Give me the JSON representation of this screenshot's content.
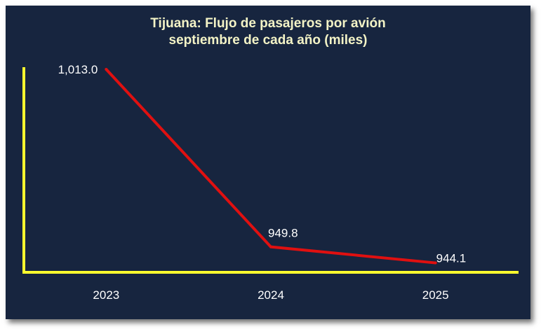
{
  "chart_data": {
    "type": "line",
    "title_line1": "Tijuana: Flujo de pasajeros por avión",
    "title_line2": "septiembre de cada año (miles)",
    "categories": [
      "2023",
      "2024",
      "2025"
    ],
    "values": [
      1013.0,
      949.8,
      944.1
    ],
    "data_labels": [
      "1,013.0",
      "949.8",
      "944.1"
    ],
    "ylim": [
      941.0,
      1013.0
    ],
    "xlabel": "",
    "ylabel": "",
    "grid": false,
    "legend": "none",
    "colors": {
      "background": "#17253f",
      "line": "#e01010",
      "axis": "#ffff2e",
      "title": "#f3f3c6",
      "text": "#ffffff"
    }
  }
}
